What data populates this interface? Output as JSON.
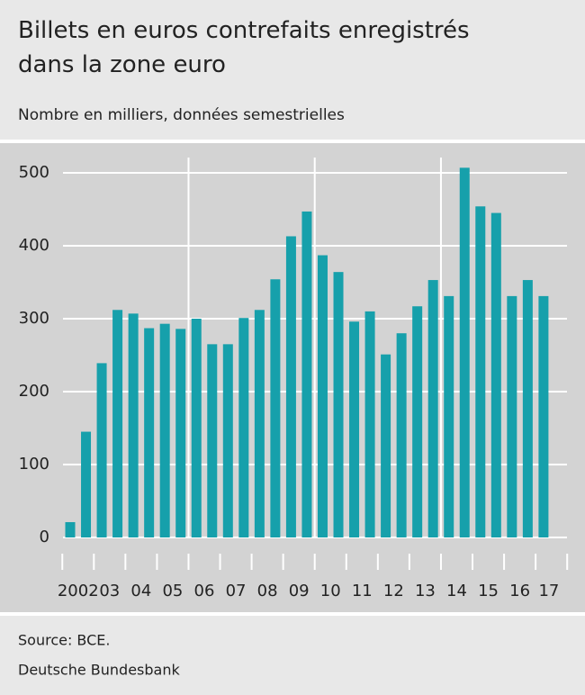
{
  "chart_data": {
    "type": "bar",
    "title": "Billets en euros contrefaits enregistrés dans la zone euro",
    "subtitle": "Nombre en milliers, données semestrielles",
    "source": "Source: BCE.",
    "publisher": "Deutsche Bundesbank",
    "categories": [
      "2002",
      null,
      "03",
      null,
      "04",
      null,
      "05",
      null,
      "06",
      null,
      "07",
      null,
      "08",
      null,
      "09",
      null,
      "10",
      null,
      "11",
      null,
      "12",
      null,
      "13",
      null,
      "14",
      null,
      "15",
      null,
      "16",
      null,
      "17"
    ],
    "values": [
      21,
      145,
      239,
      312,
      307,
      287,
      293,
      286,
      300,
      265,
      265,
      301,
      312,
      354,
      413,
      447,
      387,
      364,
      296,
      310,
      251,
      280,
      317,
      353,
      331,
      507,
      454,
      445,
      331,
      353,
      331
    ],
    "color": "#16a0ab",
    "ylim": [
      0,
      500
    ],
    "yticks": [
      0,
      100,
      200,
      300,
      400,
      500
    ],
    "grid": true
  }
}
